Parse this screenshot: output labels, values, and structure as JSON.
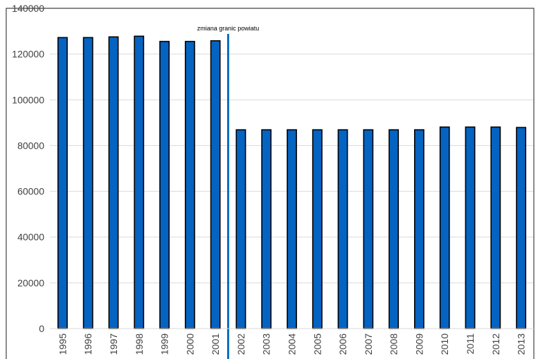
{
  "chart_data": {
    "type": "bar",
    "title": "",
    "xlabel": "",
    "ylabel": "",
    "categories": [
      "1995",
      "1996",
      "1997",
      "1998",
      "1999",
      "2000",
      "2001",
      "2002",
      "2003",
      "2004",
      "2005",
      "2006",
      "2007",
      "2008",
      "2009",
      "2010",
      "2011",
      "2012",
      "2013"
    ],
    "values": [
      127200,
      127200,
      127500,
      127800,
      125500,
      125500,
      125800,
      86900,
      86900,
      86900,
      86900,
      86900,
      86900,
      86900,
      86900,
      88100,
      88100,
      88100,
      87900
    ],
    "ylim": [
      0,
      140000
    ],
    "yticks": [
      0,
      20000,
      40000,
      60000,
      80000,
      100000,
      120000,
      140000
    ],
    "ytick_labels": [
      "0",
      "20000",
      "40000",
      "60000",
      "80000",
      "100000",
      "120000",
      "140000"
    ],
    "grid": true,
    "legend": "none",
    "colors": {
      "bar_fill": "#0563C1",
      "bar_stroke": "#000000",
      "gridline": "#d9d9d9",
      "marker_line": "#0070C0",
      "frame": "#404040"
    },
    "annotations": [
      {
        "text": "zmiana granic powiatu",
        "between_categories": [
          "2001",
          "2002"
        ]
      }
    ]
  }
}
